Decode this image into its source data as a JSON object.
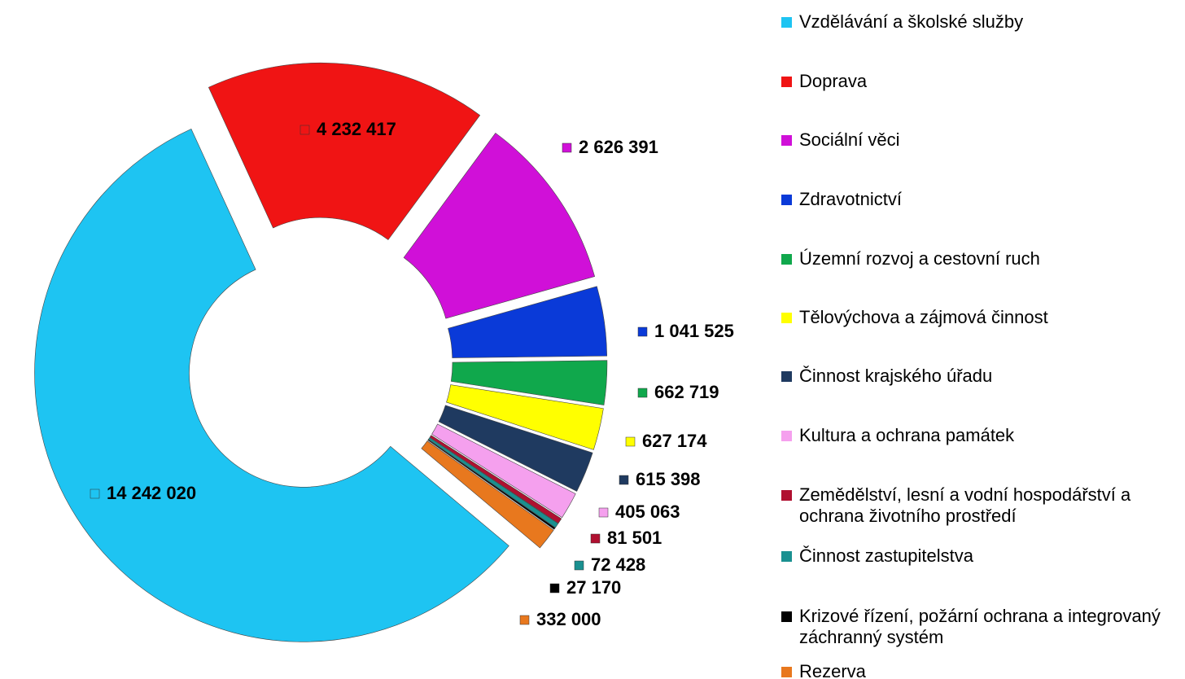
{
  "chart_data": {
    "type": "pie",
    "donut": true,
    "categories": [
      "Vzdělávání a školské služby",
      "Doprava",
      "Sociální věci",
      "Zdravotnictví",
      "Územní rozvoj a cestovní ruch",
      "Tělovýchova a zájmová činnost",
      "Činnost krajského úřadu",
      "Kultura a ochrana památek",
      "Zemědělství, lesní a vodní hospodářství a ochrana životního prostředí",
      "Činnost zastupitelstva",
      "Krizové řízení, požární ochrana a integrovaný záchranný systém",
      "Rezerva"
    ],
    "values": [
      14242020,
      4232417,
      2626391,
      1041525,
      662719,
      627174,
      615398,
      405063,
      81501,
      72428,
      27170,
      332000
    ],
    "value_labels": [
      "14 242 020",
      "4 232 417",
      "2 626 391",
      "1 041 525",
      "662 719",
      "627 174",
      "615 398",
      "405 063",
      "81 501",
      "72 428",
      "27 170",
      "332 000"
    ],
    "colors": [
      "#1ec4f2",
      "#f01414",
      "#d010d8",
      "#0a3ad8",
      "#10a84c",
      "#ffff00",
      "#1f3a60",
      "#f5a0ee",
      "#b01030",
      "#1a9090",
      "#000000",
      "#e8781e"
    ],
    "legend": "right"
  }
}
